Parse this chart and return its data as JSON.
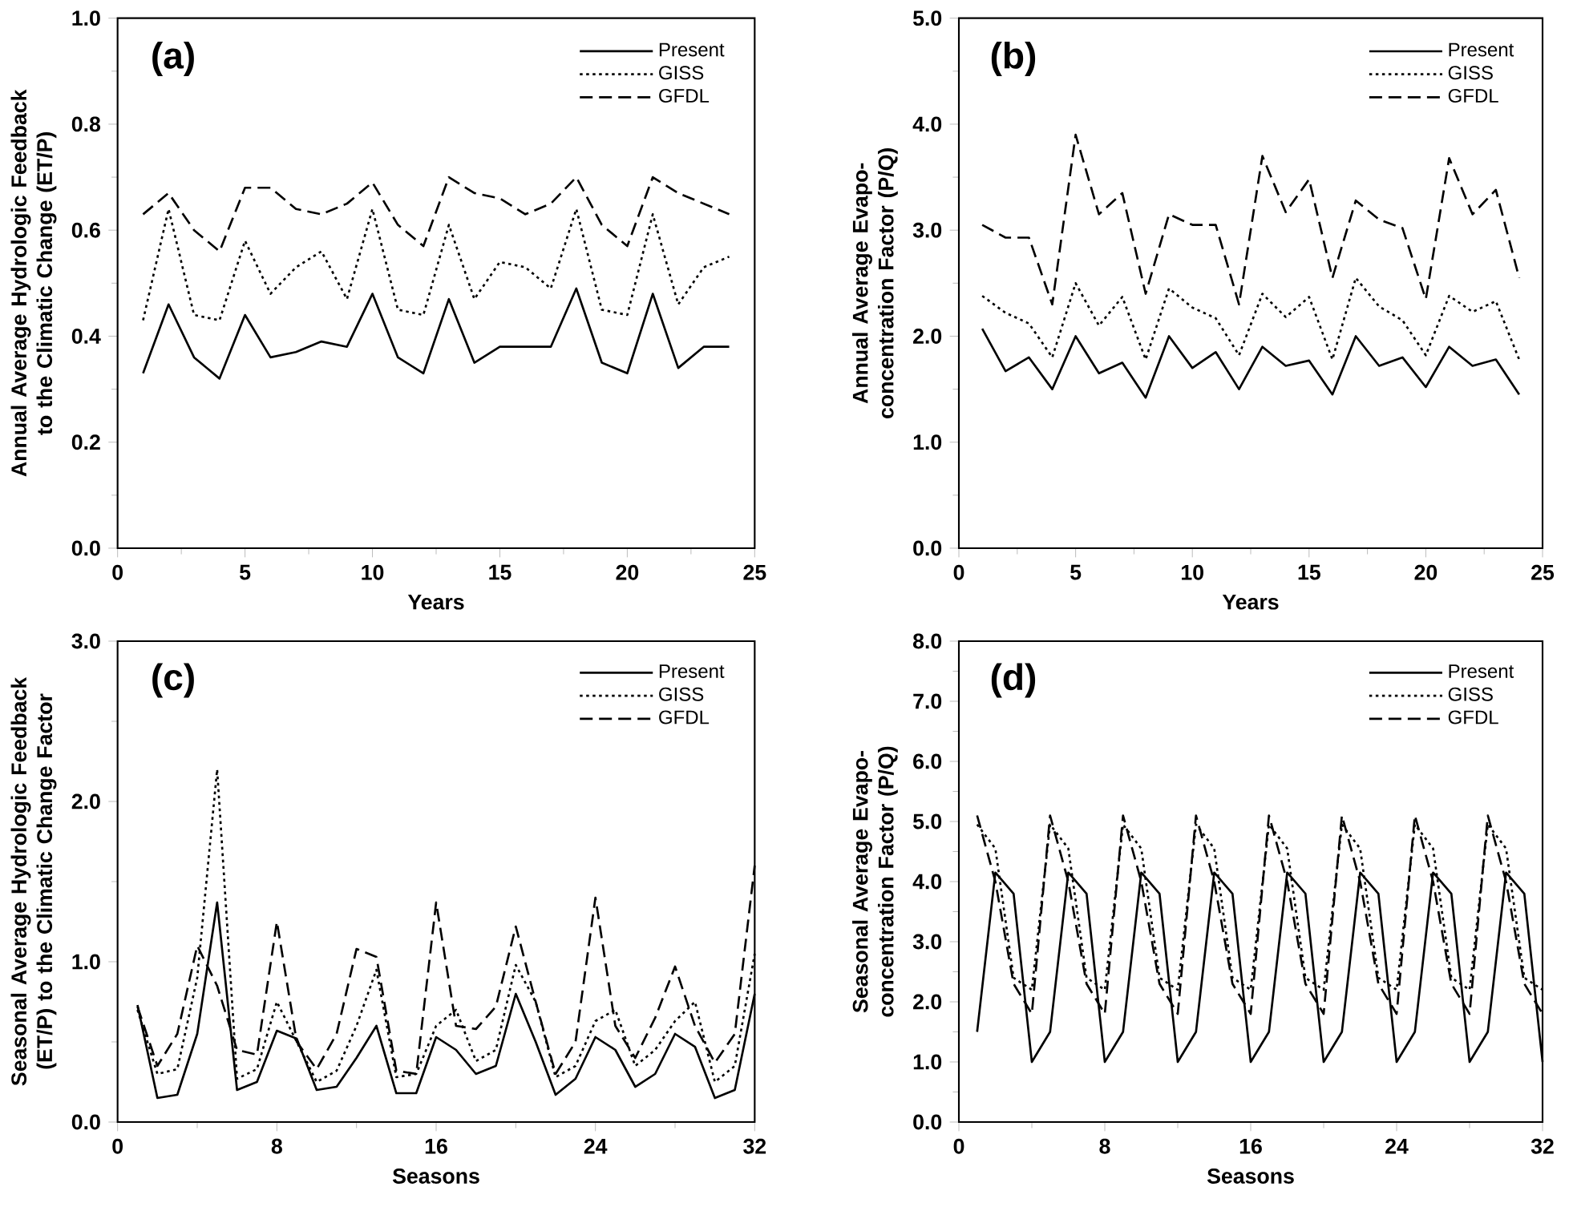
{
  "chart_data": [
    {
      "type": "line",
      "title": "(a)",
      "xlabel": "Years",
      "ylabel": "Annual Average Hydrologic Feedback to the Climatic Change (ET/P)",
      "x": [
        1,
        2,
        3,
        4,
        5,
        6,
        7,
        8,
        9,
        10,
        11,
        12,
        13,
        14,
        15,
        16,
        17,
        18,
        19,
        20,
        21,
        22,
        23,
        24
      ],
      "series": [
        {
          "name": "Present",
          "color": "#000000",
          "line_style": "solid",
          "values": [
            0.33,
            0.46,
            0.36,
            0.32,
            0.44,
            0.36,
            0.37,
            0.39,
            0.38,
            0.48,
            0.36,
            0.33,
            0.47,
            0.35,
            0.38,
            0.38,
            0.38,
            0.49,
            0.35,
            0.33,
            0.48,
            0.34,
            0.38,
            0.38
          ]
        },
        {
          "name": "GISS",
          "color": "#000000",
          "line_style": "dotted",
          "values": [
            0.43,
            0.64,
            0.44,
            0.43,
            0.58,
            0.48,
            0.53,
            0.56,
            0.47,
            0.64,
            0.45,
            0.44,
            0.61,
            0.47,
            0.54,
            0.53,
            0.49,
            0.64,
            0.45,
            0.44,
            0.63,
            0.46,
            0.53,
            0.55
          ]
        },
        {
          "name": "GFDL",
          "color": "#000000",
          "line_style": "dashed",
          "values": [
            0.63,
            0.67,
            0.6,
            0.56,
            0.68,
            0.68,
            0.64,
            0.63,
            0.65,
            0.69,
            0.61,
            0.57,
            0.7,
            0.67,
            0.66,
            0.63,
            0.65,
            0.7,
            0.61,
            0.57,
            0.7,
            0.67,
            0.65,
            0.63
          ]
        }
      ],
      "xlim": [
        0,
        25
      ],
      "xticks": [
        0,
        5,
        10,
        15,
        20,
        25
      ],
      "ylim": [
        0,
        1
      ],
      "yticks": [
        {
          "value": 0,
          "label": "0.0"
        },
        {
          "value": 0.2,
          "label": "0.2"
        },
        {
          "value": 0.4,
          "label": "0.4"
        },
        {
          "value": 0.6,
          "label": "0.6"
        },
        {
          "value": 0.8,
          "label": "0.8"
        },
        {
          "value": 1,
          "label": "1.0"
        }
      ],
      "legend": "top right"
    },
    {
      "type": "line",
      "title": "(b)",
      "xlabel": "Years",
      "ylabel": "Annual Average Evapo-concentration Factor (P/Q)",
      "x": [
        1,
        2,
        3,
        4,
        5,
        6,
        7,
        8,
        9,
        10,
        11,
        12,
        13,
        14,
        15,
        16,
        17,
        18,
        19,
        20,
        21,
        22,
        23,
        24
      ],
      "series": [
        {
          "name": "Present",
          "color": "#000000",
          "line_style": "solid",
          "values": [
            2.07,
            1.67,
            1.8,
            1.5,
            2.0,
            1.65,
            1.75,
            1.42,
            2.0,
            1.7,
            1.85,
            1.5,
            1.9,
            1.72,
            1.77,
            1.45,
            2.0,
            1.72,
            1.8,
            1.52,
            1.9,
            1.72,
            1.78,
            1.45
          ]
        },
        {
          "name": "GISS",
          "color": "#000000",
          "line_style": "dotted",
          "values": [
            2.38,
            2.22,
            2.12,
            1.8,
            2.5,
            2.1,
            2.37,
            1.78,
            2.45,
            2.27,
            2.17,
            1.82,
            2.4,
            2.18,
            2.37,
            1.78,
            2.55,
            2.28,
            2.15,
            1.82,
            2.38,
            2.23,
            2.33,
            1.78
          ]
        },
        {
          "name": "GFDL",
          "color": "#000000",
          "line_style": "dashed",
          "values": [
            3.05,
            2.93,
            2.93,
            2.3,
            3.9,
            3.15,
            3.35,
            2.4,
            3.15,
            3.05,
            3.05,
            2.3,
            3.7,
            3.17,
            3.48,
            2.55,
            3.28,
            3.1,
            3.02,
            2.35,
            3.68,
            3.15,
            3.38,
            2.55
          ]
        }
      ],
      "xlim": [
        0,
        25
      ],
      "xticks": [
        0,
        5,
        10,
        15,
        20,
        25
      ],
      "ylim": [
        0,
        5
      ],
      "yticks": [
        {
          "value": 0,
          "label": "0.0"
        },
        {
          "value": 1,
          "label": "1.0"
        },
        {
          "value": 2,
          "label": "2.0"
        },
        {
          "value": 3,
          "label": "3.0"
        },
        {
          "value": 4,
          "label": "4.0"
        },
        {
          "value": 5,
          "label": "5.0"
        }
      ],
      "legend": "top right"
    },
    {
      "type": "line",
      "title": "(c)",
      "xlabel": "Seasons",
      "ylabel": "Seasonal Average Hydrologic Feedback (ET/P) to the Climatic Change Factor",
      "x": [
        1,
        2,
        3,
        4,
        5,
        6,
        7,
        8,
        9,
        10,
        11,
        12,
        13,
        14,
        15,
        16,
        17,
        18,
        19,
        20,
        21,
        22,
        23,
        24,
        25,
        26,
        27,
        28,
        29,
        30,
        31,
        32
      ],
      "series": [
        {
          "name": "Present",
          "color": "#000000",
          "line_style": "solid",
          "values": [
            0.73,
            0.15,
            0.17,
            0.55,
            1.37,
            0.2,
            0.25,
            0.57,
            0.52,
            0.2,
            0.22,
            0.4,
            0.6,
            0.18,
            0.18,
            0.53,
            0.45,
            0.3,
            0.35,
            0.8,
            0.5,
            0.17,
            0.27,
            0.53,
            0.45,
            0.22,
            0.3,
            0.55,
            0.47,
            0.15,
            0.2,
            0.8
          ]
        },
        {
          "name": "GISS",
          "color": "#000000",
          "line_style": "dotted",
          "values": [
            0.7,
            0.3,
            0.33,
            0.9,
            2.2,
            0.27,
            0.33,
            0.75,
            0.5,
            0.25,
            0.32,
            0.6,
            0.95,
            0.28,
            0.3,
            0.6,
            0.7,
            0.38,
            0.45,
            0.98,
            0.75,
            0.28,
            0.35,
            0.63,
            0.7,
            0.35,
            0.45,
            0.63,
            0.75,
            0.25,
            0.35,
            1.05
          ]
        },
        {
          "name": "GFDL",
          "color": "#000000",
          "line_style": "dashed",
          "values": [
            0.72,
            0.35,
            0.55,
            1.1,
            0.85,
            0.45,
            0.42,
            1.25,
            0.5,
            0.33,
            0.55,
            1.08,
            1.03,
            0.32,
            0.3,
            1.37,
            0.6,
            0.58,
            0.72,
            1.22,
            0.75,
            0.3,
            0.5,
            1.4,
            0.6,
            0.4,
            0.65,
            0.97,
            0.6,
            0.37,
            0.55,
            1.6
          ]
        }
      ],
      "xlim": [
        0,
        32
      ],
      "xticks": [
        0,
        8,
        16,
        24,
        32
      ],
      "ylim": [
        0,
        3
      ],
      "yticks": [
        {
          "value": 0,
          "label": "0.0"
        },
        {
          "value": 1,
          "label": "1.0"
        },
        {
          "value": 2,
          "label": "2.0"
        },
        {
          "value": 3,
          "label": "3.0"
        }
      ],
      "legend": "top right"
    },
    {
      "type": "line",
      "title": "(d)",
      "xlabel": "Seasons",
      "ylabel": "Seasonal Average Evapo-concentration Factor (P/Q)",
      "x": [
        1,
        2,
        3,
        4,
        5,
        6,
        7,
        8,
        9,
        10,
        11,
        12,
        13,
        14,
        15,
        16,
        17,
        18,
        19,
        20,
        21,
        22,
        23,
        24,
        25,
        26,
        27,
        28,
        29,
        30,
        31,
        32
      ],
      "series": [
        {
          "name": "Present",
          "color": "#000000",
          "line_style": "solid",
          "values": [
            1.5,
            4.15,
            3.8,
            1.0,
            1.5,
            4.15,
            3.8,
            1.0,
            1.5,
            4.15,
            3.8,
            1.0,
            1.5,
            4.15,
            3.8,
            1.0,
            1.5,
            4.15,
            3.8,
            1.0,
            1.5,
            4.15,
            3.8,
            1.0,
            1.5,
            4.15,
            3.8,
            1.0,
            1.5,
            4.15,
            3.8,
            1.0
          ]
        },
        {
          "name": "GISS",
          "color": "#000000",
          "line_style": "dotted",
          "values": [
            4.95,
            4.55,
            2.4,
            2.2,
            4.95,
            4.55,
            2.4,
            2.2,
            4.95,
            4.55,
            2.4,
            2.2,
            4.95,
            4.55,
            2.4,
            2.2,
            4.95,
            4.55,
            2.4,
            2.2,
            4.95,
            4.55,
            2.4,
            2.2,
            4.95,
            4.55,
            2.4,
            2.2,
            4.95,
            4.55,
            2.4,
            2.2
          ]
        },
        {
          "name": "GFDL",
          "color": "#000000",
          "line_style": "dashed",
          "values": [
            5.1,
            4.0,
            2.3,
            1.8,
            5.1,
            4.0,
            2.3,
            1.8,
            5.1,
            4.0,
            2.3,
            1.8,
            5.1,
            4.0,
            2.3,
            1.8,
            5.1,
            4.0,
            2.3,
            1.8,
            5.1,
            4.0,
            2.3,
            1.8,
            5.1,
            4.0,
            2.3,
            1.8,
            5.1,
            4.0,
            2.3,
            1.8
          ]
        }
      ],
      "xlim": [
        0,
        32
      ],
      "xticks": [
        0,
        8,
        16,
        24,
        32
      ],
      "ylim": [
        0,
        8
      ],
      "yticks": [
        {
          "value": 0,
          "label": "0.0"
        },
        {
          "value": 1,
          "label": "1.0"
        },
        {
          "value": 2,
          "label": "2.0"
        },
        {
          "value": 3,
          "label": "3.0"
        },
        {
          "value": 4,
          "label": "4.0"
        },
        {
          "value": 5,
          "label": "5.0"
        },
        {
          "value": 6,
          "label": "6.0"
        },
        {
          "value": 7,
          "label": "7.0"
        },
        {
          "value": 8,
          "label": "8.0"
        }
      ],
      "legend": "top right"
    }
  ]
}
